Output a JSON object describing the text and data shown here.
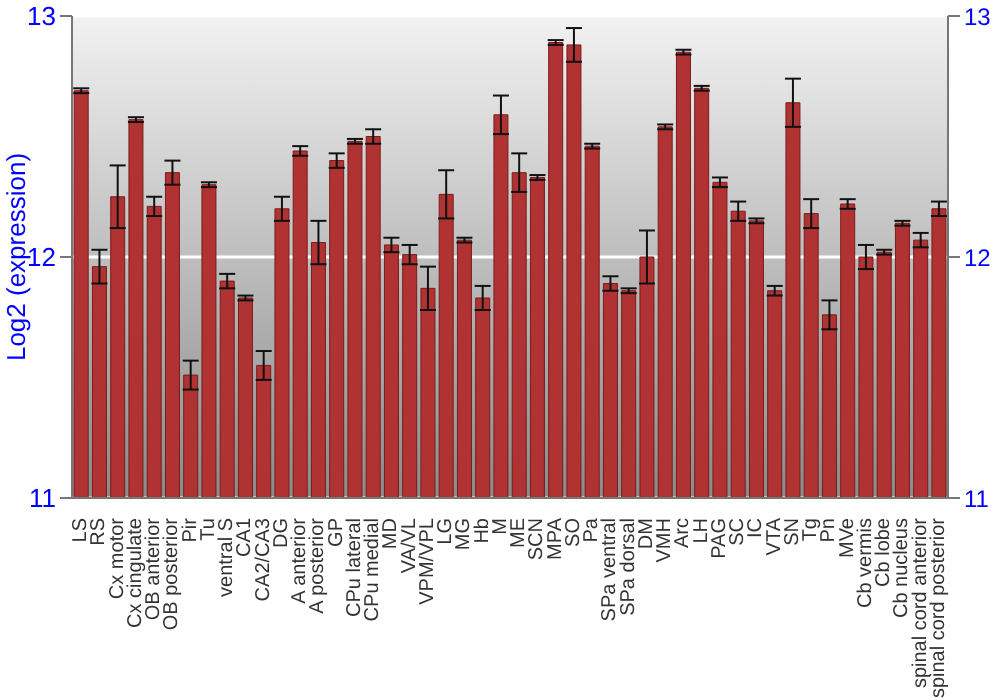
{
  "chart_data": {
    "type": "bar",
    "ylabel": "Log2 (expression)",
    "categories": [
      "LS",
      "RS",
      "Cx motor",
      "Cx cingulate",
      "OB anterior",
      "OB posterior",
      "Pir",
      "Tu",
      "ventral S",
      "CA1",
      "CA2/CA3",
      "DG",
      "A anterior",
      "A posterior",
      "GP",
      "CPu lateral",
      "CPu medial",
      "MD",
      "VA/VL",
      "VPM/VPL",
      "LG",
      "MG",
      "Hb",
      "M",
      "ME",
      "SCN",
      "MPA",
      "SO",
      "Pa",
      "SPa ventral",
      "SPa dorsal",
      "DM",
      "VMH",
      "Arc",
      "LH",
      "PAG",
      "SC",
      "IC",
      "VTA",
      "SN",
      "Tg",
      "Pn",
      "MVe",
      "Cb vermis",
      "Cb lobe",
      "Cb nucleus",
      "spinal cord anterior",
      "spinal cord posterior"
    ],
    "values": [
      12.69,
      11.96,
      12.25,
      12.57,
      12.21,
      12.35,
      11.51,
      12.3,
      11.9,
      11.83,
      11.55,
      12.2,
      12.44,
      12.06,
      12.4,
      12.48,
      12.5,
      12.05,
      12.01,
      11.87,
      12.26,
      12.07,
      11.83,
      12.59,
      12.35,
      12.33,
      12.89,
      12.88,
      12.46,
      11.89,
      11.86,
      12.0,
      12.54,
      12.85,
      12.7,
      12.31,
      12.19,
      12.15,
      11.86,
      12.64,
      12.18,
      11.76,
      12.22,
      12.0,
      12.02,
      12.14,
      12.07,
      12.2
    ],
    "errors": [
      0.01,
      0.07,
      0.13,
      0.01,
      0.04,
      0.05,
      0.06,
      0.01,
      0.03,
      0.01,
      0.06,
      0.05,
      0.02,
      0.09,
      0.03,
      0.01,
      0.03,
      0.03,
      0.04,
      0.09,
      0.1,
      0.01,
      0.05,
      0.08,
      0.08,
      0.01,
      0.01,
      0.07,
      0.01,
      0.03,
      0.01,
      0.11,
      0.01,
      0.01,
      0.01,
      0.02,
      0.04,
      0.01,
      0.02,
      0.1,
      0.06,
      0.06,
      0.02,
      0.05,
      0.01,
      0.01,
      0.03,
      0.03
    ],
    "color": "#b03232",
    "ylim": [
      11,
      13
    ],
    "yticks": [
      11,
      12,
      13
    ],
    "y2lim": [
      11,
      13
    ],
    "y2ticks": [
      11,
      12,
      13
    ],
    "grid": "y"
  }
}
